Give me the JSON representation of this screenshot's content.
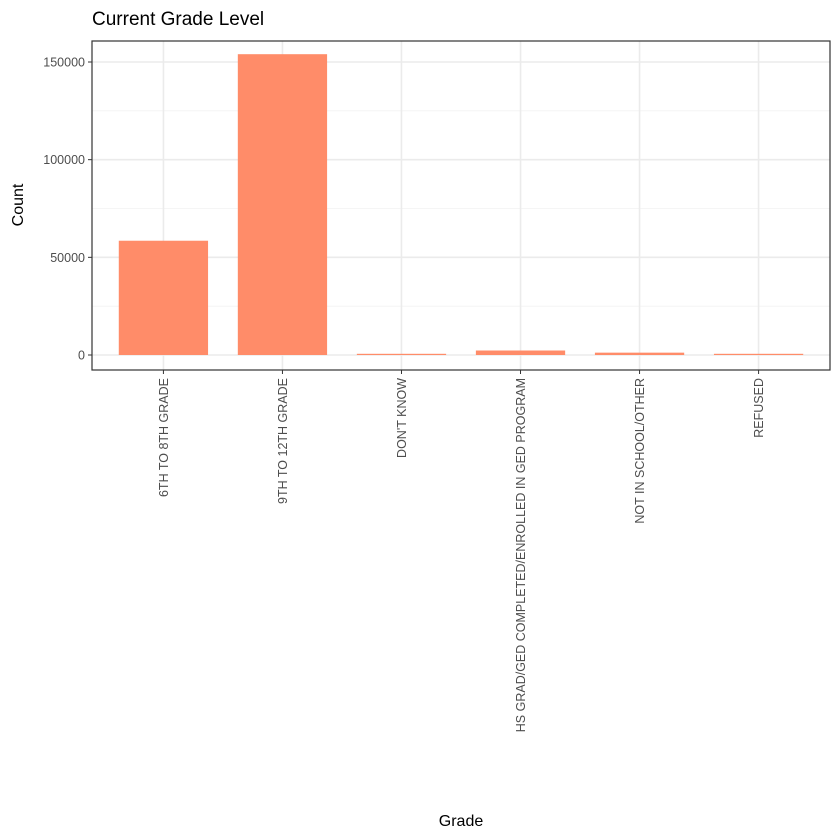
{
  "chart_data": {
    "type": "bar",
    "title": "Current Grade Level",
    "xlabel": "Grade",
    "ylabel": "Count",
    "categories": [
      "6TH TO 8TH GRADE",
      "9TH TO 12TH GRADE",
      "DON'T KNOW",
      "HS GRAD/GED COMPLETED/ENROLLED IN GED PROGRAM",
      "NOT IN SCHOOL/OTHER",
      "REFUSED"
    ],
    "values": [
      58500,
      154000,
      600,
      2300,
      1200,
      400
    ],
    "ylim": [
      0,
      162000
    ],
    "yticks": [
      0,
      50000,
      100000,
      150000
    ],
    "ytick_labels": [
      "0",
      "50000",
      "100000",
      "150000"
    ],
    "grid": true,
    "bar_color": "#ff8c69"
  }
}
